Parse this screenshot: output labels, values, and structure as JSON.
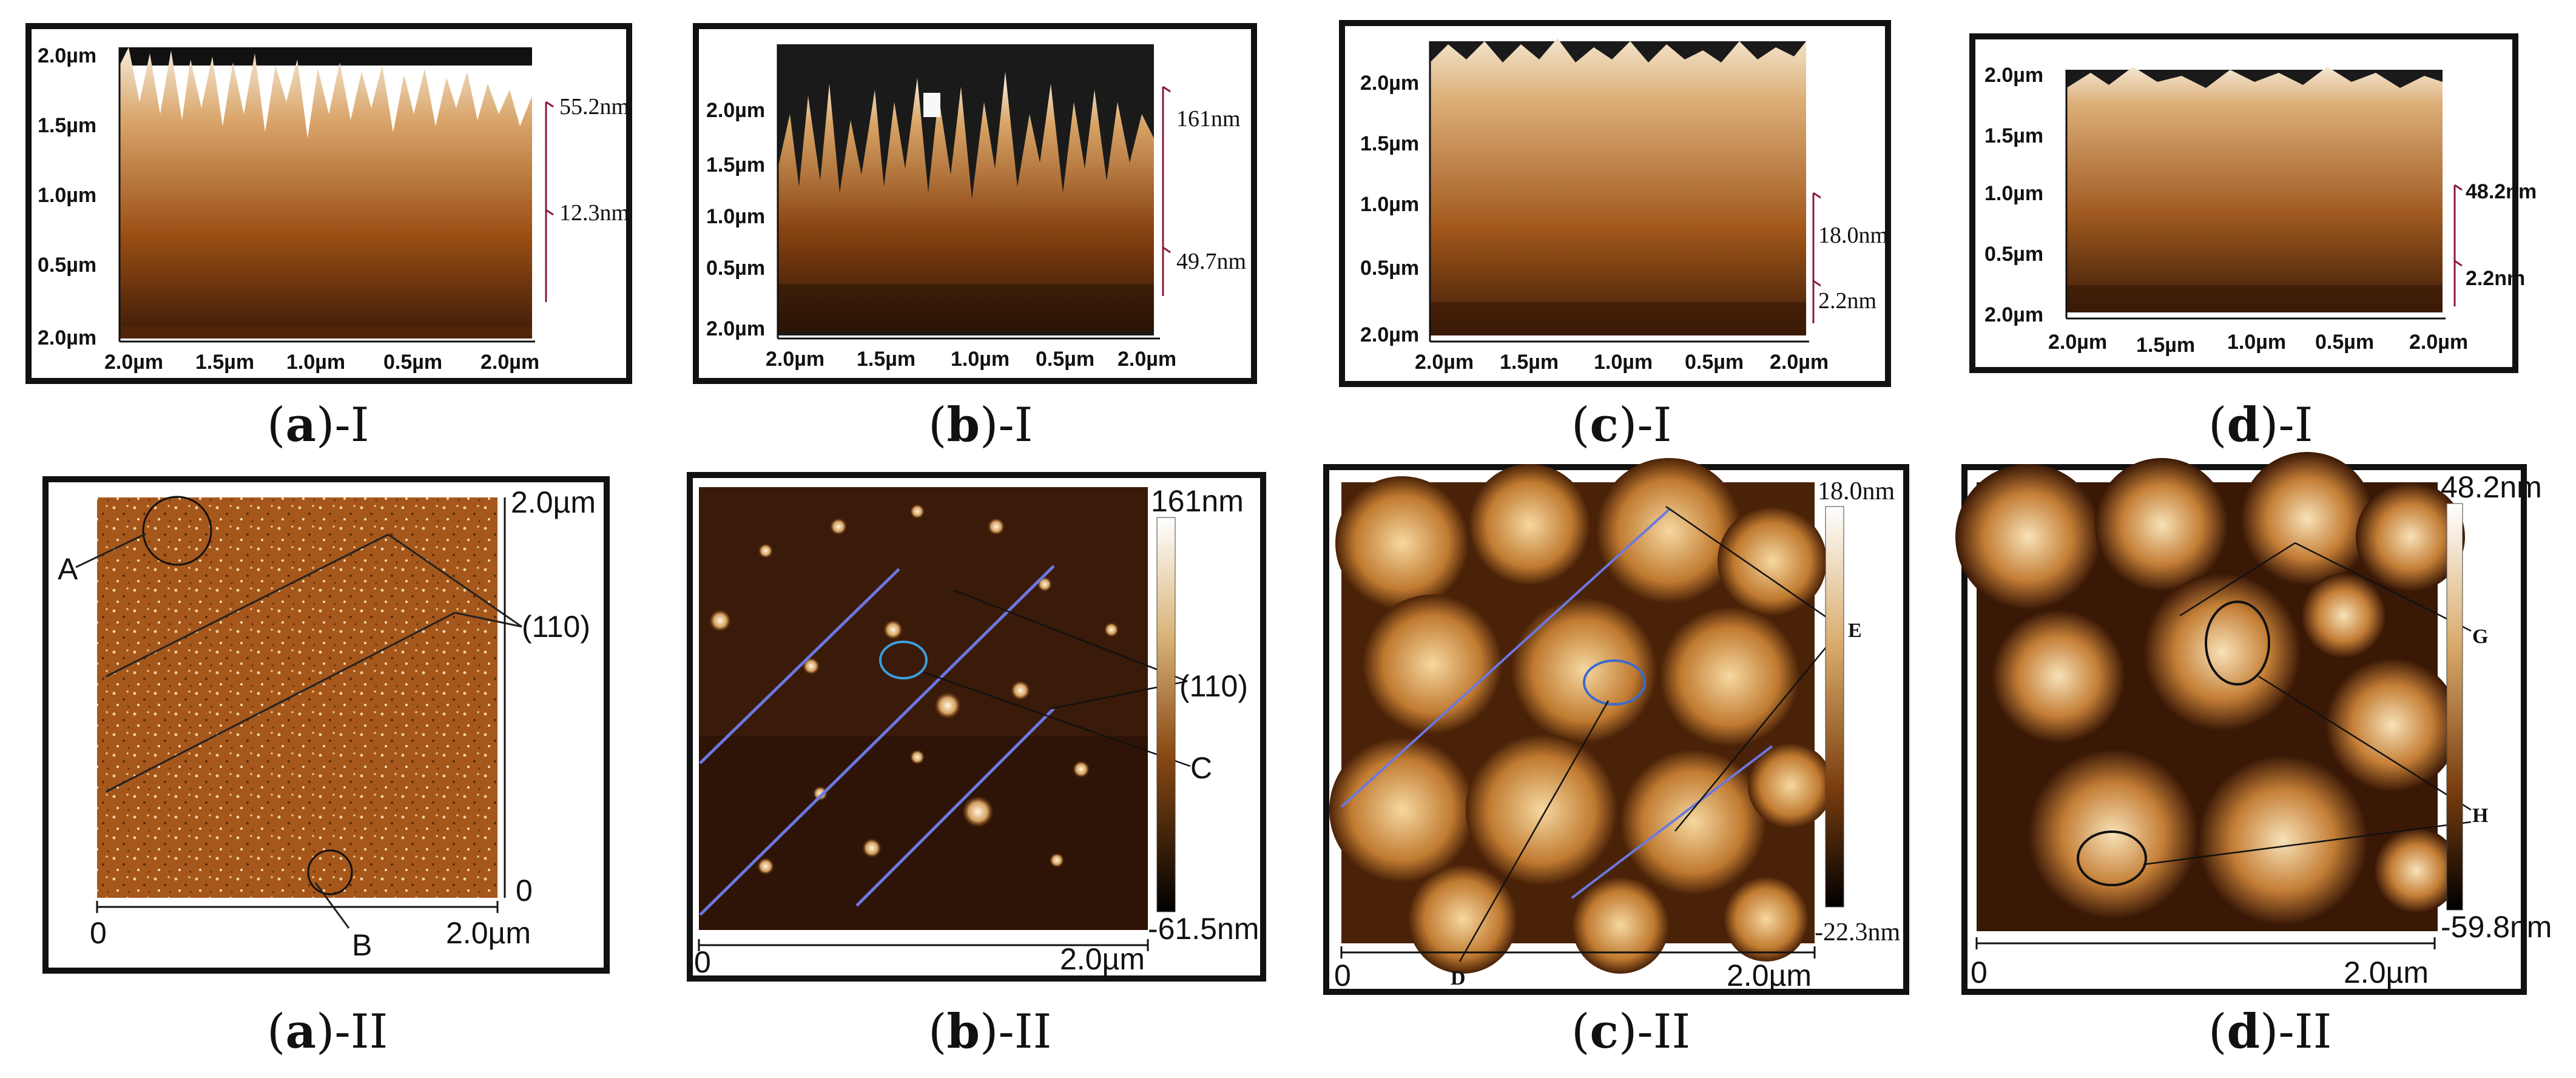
{
  "figure": {
    "captions_top": {
      "a": {
        "letter": "a",
        "suffix": "-I"
      },
      "b": {
        "letter": "b",
        "suffix": "-I"
      },
      "c": {
        "letter": "c",
        "suffix": "-I"
      },
      "d": {
        "letter": "d",
        "suffix": "-I"
      }
    },
    "captions_bottom": {
      "a": {
        "letter": "a",
        "suffix": "-II"
      },
      "b": {
        "letter": "b",
        "suffix": "-II"
      },
      "c": {
        "letter": "c",
        "suffix": "-II"
      },
      "d": {
        "letter": "d",
        "suffix": "-II"
      }
    },
    "panel_a1": {
      "y_ticks": [
        "2.0µm",
        "1.5µm",
        "1.0µm",
        "0.5µm",
        "2.0µm"
      ],
      "x_ticks": [
        "2.0µm",
        "1.5µm",
        "1.0µm",
        "0.5µm",
        "2.0µm"
      ],
      "z_high": "55.2nm",
      "z_low": "12.3nm"
    },
    "panel_b1": {
      "y_ticks": [
        "2.0µm",
        "1.5µm",
        "1.0µm",
        "0.5µm",
        "2.0µm"
      ],
      "x_ticks": [
        "2.0µm",
        "1.5µm",
        "1.0µm",
        "0.5µm",
        "2.0µm"
      ],
      "z_high": "161nm",
      "z_low": "49.7nm"
    },
    "panel_c1": {
      "y_ticks": [
        "2.0µm",
        "1.5µm",
        "1.0µm",
        "0.5µm",
        "2.0µm"
      ],
      "x_ticks": [
        "2.0µm",
        "1.5µm",
        "1.0µm",
        "0.5µm",
        "2.0µm"
      ],
      "z_high": "18.0nm",
      "z_low": "2.2nm"
    },
    "panel_d1": {
      "y_ticks": [
        "2.0µm",
        "1.5µm",
        "1.0µm",
        "0.5µm",
        "2.0µm"
      ],
      "x_ticks": [
        "2.0µm",
        "1.5µm",
        "1.0µm",
        "0.5µm",
        "2.0µm"
      ],
      "z_high": "48.2nm",
      "z_low": "2.2nm"
    },
    "panel_a2": {
      "x_start": "0",
      "x_end": "2.0µm",
      "y_top": "2.0µm",
      "y_bottom": "0",
      "label_A": "A",
      "label_B": "B",
      "label_plane": "(110)"
    },
    "panel_b2": {
      "x_start": "0",
      "x_end": "2.0µm",
      "scale_max": "161nm",
      "scale_min": "-61.5nm",
      "label_plane": "(110)",
      "label_C": "C"
    },
    "panel_c2": {
      "x_start": "0",
      "x_end": "2.0µm",
      "scale_max": "18.0nm",
      "scale_min": "-22.3nm",
      "label_D": "D",
      "label_E": "E"
    },
    "panel_d2": {
      "x_start": "0",
      "x_end": "2.0µm",
      "scale_max": "48.2nm",
      "scale_min": "-59.8nm",
      "label_G": "G",
      "label_H": "H"
    },
    "colors": {
      "afm_dark": "#2a1608",
      "afm_mid": "#a2561a",
      "afm_light": "#e9c592",
      "guide_blue": "#6b78e0"
    }
  }
}
